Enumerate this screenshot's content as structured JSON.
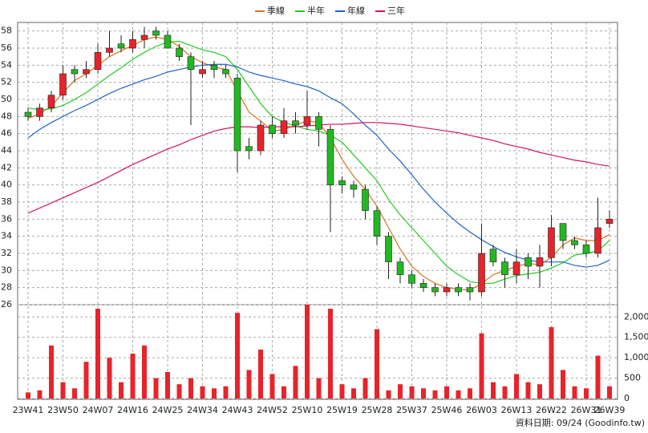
{
  "chart_data": {
    "type": "candlestick",
    "legend": [
      "季線",
      "半年",
      "年線",
      "三年"
    ],
    "categories": [
      "23W41",
      null,
      null,
      "23W50",
      null,
      null,
      "24W07",
      null,
      null,
      "24W16",
      null,
      null,
      "24W25",
      null,
      null,
      "24W34",
      null,
      null,
      "24W43",
      null,
      null,
      "24W52",
      null,
      null,
      "25W10",
      null,
      null,
      "25W19",
      null,
      null,
      "25W28",
      null,
      null,
      "25W37",
      null,
      null,
      "25W46",
      null,
      null,
      "26W03",
      null,
      null,
      "26W13",
      null,
      null,
      "26W22",
      null,
      null,
      "26W31",
      null,
      "26W39"
    ],
    "open": [
      48.5,
      48,
      49,
      50.5,
      53.5,
      53,
      53.5,
      55.5,
      56.5,
      56,
      57,
      58,
      57.5,
      56,
      55,
      53,
      54,
      53.5,
      52.5,
      44.5,
      44,
      47,
      46,
      47.5,
      47,
      48,
      46.5,
      40.5,
      40,
      39.5,
      37,
      34,
      31,
      29.5,
      28.5,
      28,
      27.5,
      28,
      28,
      27.5,
      32.5,
      31,
      29.5,
      31.5,
      30.5,
      31.5,
      35.5,
      33.5,
      33,
      32,
      35.5
    ],
    "high": [
      49,
      49.5,
      51,
      54,
      54,
      54.5,
      56.5,
      58,
      57.5,
      58,
      58.5,
      58.5,
      58,
      56.5,
      55.5,
      54.5,
      54.5,
      54,
      53,
      45.5,
      47.5,
      48,
      49,
      48.5,
      51,
      48.5,
      47,
      41,
      40.5,
      40,
      37.5,
      34.5,
      31.5,
      30,
      29,
      28.5,
      28.5,
      28.5,
      28.5,
      35.5,
      33,
      31.5,
      32.5,
      32,
      33,
      36.5,
      35.5,
      34,
      33.5,
      38.5,
      37
    ],
    "low": [
      47.5,
      47.5,
      48.5,
      50,
      52,
      52.5,
      53,
      55,
      55.5,
      55.5,
      56,
      57,
      56,
      54.5,
      47,
      52.5,
      52.5,
      52.5,
      41.5,
      43,
      43.5,
      45.5,
      45.5,
      46,
      46.5,
      44.5,
      34.5,
      39,
      38.5,
      36,
      33,
      29,
      28.5,
      28,
      27.5,
      27,
      27,
      27,
      26.5,
      27,
      30.5,
      28,
      28.5,
      29,
      28,
      30.5,
      32.5,
      32.5,
      31.5,
      31.5,
      35
    ],
    "close": [
      48,
      49,
      50.5,
      53,
      53,
      53.5,
      55.5,
      56,
      56,
      57,
      57.5,
      57.5,
      56,
      55,
      53.5,
      53.5,
      53.5,
      53,
      44,
      44,
      47,
      46,
      47.5,
      47,
      48,
      46.5,
      40,
      40,
      39.5,
      37,
      34,
      31,
      29.5,
      28.5,
      28,
      27.5,
      28,
      27.5,
      27.5,
      32,
      31,
      29.5,
      31,
      30.5,
      31.5,
      35,
      33.5,
      33,
      32,
      35,
      36
    ],
    "up_color": "#e8232a",
    "down_color": "#22b822",
    "series": [
      {
        "name": "季線",
        "color": "#d8741e",
        "values": [
          47.8,
          48.3,
          49.2,
          50.8,
          52.2,
          53,
          54,
          55,
          55.7,
          56.3,
          57,
          57.3,
          57,
          56.2,
          55,
          54.3,
          53.8,
          53.5,
          51,
          48.5,
          47.5,
          46.3,
          46.5,
          47,
          47.5,
          47.3,
          45.5,
          43,
          41,
          39.5,
          37.5,
          35,
          32.5,
          30.5,
          29.3,
          28.5,
          28,
          27.8,
          27.7,
          28.5,
          29.5,
          30,
          30.5,
          30.8,
          30.7,
          31.5,
          33,
          33.8,
          33.5,
          33.5,
          34.2
        ]
      },
      {
        "name": "半年",
        "color": "#22cc22",
        "values": [
          49,
          48.8,
          48.9,
          49.3,
          50,
          50.8,
          51.8,
          52.8,
          53.7,
          54.7,
          55.5,
          56.2,
          56.7,
          56.8,
          56.3,
          55.8,
          55.5,
          55,
          53.5,
          51.5,
          49.5,
          48,
          47.3,
          46.9,
          46.5,
          46.3,
          45.8,
          45,
          43.5,
          42,
          40.5,
          38.3,
          36.5,
          35,
          33.5,
          32,
          30.5,
          29.5,
          28.7,
          28.5,
          28.5,
          29,
          29.4,
          29.6,
          29.8,
          30.3,
          30.9,
          31.8,
          32,
          32.3,
          33.5
        ]
      },
      {
        "name": "年線",
        "color": "#1e64c8",
        "values": [
          45.5,
          46.5,
          47.3,
          48,
          48.7,
          49.3,
          50,
          50.7,
          51.3,
          51.8,
          52.3,
          52.7,
          53.2,
          53.5,
          53.8,
          54,
          54.1,
          54.1,
          53.8,
          53.2,
          52.8,
          52.5,
          52.2,
          51.8,
          51.5,
          51,
          50.2,
          49.5,
          48.3,
          47,
          45.8,
          44.2,
          42.8,
          41.2,
          39.5,
          38,
          36.7,
          35.5,
          34.5,
          33.6,
          32.8,
          32.1,
          31.6,
          31.2,
          31,
          31,
          31,
          30.6,
          30.4,
          30.6,
          31.2
        ]
      },
      {
        "name": "三年",
        "color": "#cc1464",
        "values": [
          36.7,
          37.3,
          37.9,
          38.5,
          39.1,
          39.7,
          40.3,
          41,
          41.7,
          42.4,
          43,
          43.6,
          44.2,
          44.7,
          45.3,
          45.8,
          46.3,
          46.6,
          46.8,
          46.8,
          46.7,
          46.8,
          46.8,
          46.8,
          46.9,
          47,
          47.1,
          47.1,
          47.2,
          47.3,
          47.3,
          47.2,
          47.1,
          46.9,
          46.7,
          46.5,
          46.3,
          46.1,
          45.8,
          45.5,
          45.2,
          44.8,
          44.5,
          44.2,
          43.8,
          43.5,
          43.2,
          42.9,
          42.7,
          42.4,
          42.2
        ]
      }
    ],
    "ylim": [
      26,
      59
    ],
    "yticks": [
      26,
      28,
      30,
      32,
      34,
      36,
      38,
      40,
      42,
      44,
      46,
      48,
      50,
      52,
      54,
      56,
      58
    ],
    "grid": true,
    "volume": {
      "color": "#e8232a",
      "values": [
        150,
        200,
        1300,
        400,
        250,
        900,
        2200,
        1000,
        400,
        1100,
        1300,
        500,
        650,
        350,
        500,
        300,
        250,
        300,
        2100,
        700,
        1200,
        600,
        300,
        800,
        2300,
        500,
        2200,
        350,
        250,
        500,
        1700,
        200,
        350,
        300,
        250,
        200,
        300,
        200,
        250,
        1600,
        400,
        300,
        600,
        400,
        350,
        1750,
        700,
        300,
        250,
        1050,
        300
      ],
      "ylim": [
        0,
        2300
      ],
      "yticks": [
        0,
        500,
        {
          "value": 1000,
          "label": "1,000"
        },
        {
          "value": 1500,
          "label": "1,500"
        },
        {
          "value": 2000,
          "label": "2,000"
        }
      ]
    },
    "source_note": "資料日期: 09/24  (Goodinfo.tw)"
  }
}
